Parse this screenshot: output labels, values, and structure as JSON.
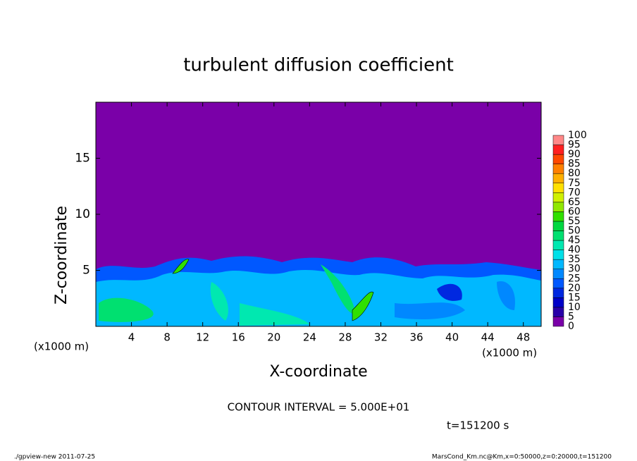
{
  "chart_data": {
    "type": "contour",
    "title": "turbulent diffusion coefficient",
    "x_label": "X-coordinate",
    "y_label": "Z-coordinate",
    "x_unit_left": "(x1000 m)",
    "x_unit_right": "(x1000 m)",
    "xlim": [
      0,
      50
    ],
    "xticks": [
      4,
      8,
      12,
      16,
      20,
      24,
      28,
      32,
      36,
      40,
      44,
      48
    ],
    "ylim": [
      0,
      20
    ],
    "yticks": [
      5,
      10,
      15
    ],
    "colorbar": {
      "levels": [
        0,
        5,
        10,
        15,
        20,
        25,
        30,
        35,
        40,
        45,
        50,
        55,
        60,
        65,
        70,
        75,
        80,
        85,
        90,
        95,
        100
      ],
      "colors": [
        "#7a00a8",
        "#2800a8",
        "#0000c8",
        "#0028e0",
        "#0058ff",
        "#0088ff",
        "#00b8ff",
        "#00e0e8",
        "#00e8b0",
        "#00e070",
        "#00d840",
        "#30e000",
        "#90e800",
        "#d0f000",
        "#ffe000",
        "#ffb000",
        "#ff8000",
        "#ff4800",
        "#ff2020",
        "#ff8888"
      ]
    },
    "contour_interval": "CONTOUR INTERVAL = 5.000E+01",
    "time_label": "t=151200 s",
    "footer_left": "./gpview-new  2011-07-25",
    "footer_right": "MarsCond_Km.nc@Km,x=0:50000,z=0:20000,t=151200"
  }
}
